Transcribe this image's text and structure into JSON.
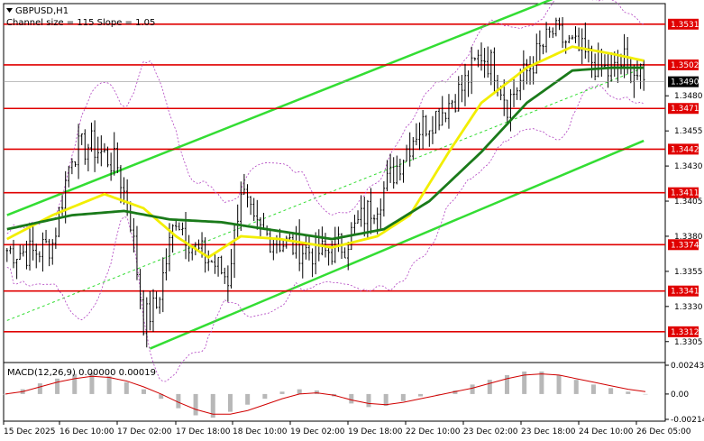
{
  "header": {
    "symbol": "GBPUSD,H1",
    "channel_info": "Channel size = 115 Slope = 1.05"
  },
  "macd_panel": {
    "label": "MACD(12,26,9) 0.00000 0.00019",
    "ticks": [
      "0.00243",
      "0.00",
      "-0.00214"
    ]
  },
  "colors": {
    "candle": "#000000",
    "sma_green": "#1a7a1a",
    "sma_yellow": "#f2ee00",
    "channel": "#33dd33",
    "level_line": "#e00000",
    "bollinger": "#b040c0",
    "macd_hist": "#b8b8b8",
    "macd_signal": "#d00000",
    "current_price_bg": "#000000"
  },
  "chart_data": {
    "type": "candlestick",
    "title": "GBPUSD,H1",
    "ylim": [
      1.3292,
      1.3545
    ],
    "y_ticks": [
      1.3305,
      1.333,
      1.3355,
      1.338,
      1.3405,
      1.343,
      1.3455,
      1.348
    ],
    "y_tick_labels": [
      "1.3305",
      "1.3330",
      "1.3355",
      "1.3380",
      "1.3405",
      "1.3430",
      "1.3455",
      "1.3480"
    ],
    "x_labels": [
      "15 Dec 2025",
      "16 Dec 10:00",
      "17 Dec 02:00",
      "17 Dec 18:00",
      "18 Dec 10:00",
      "19 Dec 02:00",
      "19 Dec 18:00",
      "22 Dec 10:00",
      "23 Dec 02:00",
      "23 Dec 18:00",
      "24 Dec 10:00",
      "26 Dec 05:00"
    ],
    "levels": [
      {
        "value": 1.3531,
        "label": "1.3531"
      },
      {
        "value": 1.3502,
        "label": "1.3502"
      },
      {
        "value": 1.3471,
        "label": "1.3471"
      },
      {
        "value": 1.3442,
        "label": "1.3442"
      },
      {
        "value": 1.3411,
        "label": "1.3411"
      },
      {
        "value": 1.3374,
        "label": "1.3374"
      },
      {
        "value": 1.3341,
        "label": "1.3341"
      },
      {
        "value": 1.3312,
        "label": "1.3312"
      }
    ],
    "current_price": {
      "value": 1.349,
      "label": "1.3490"
    },
    "close_path": [
      {
        "i": 0,
        "v": 1.337
      },
      {
        "i": 8,
        "v": 1.3368
      },
      {
        "i": 14,
        "v": 1.3375
      },
      {
        "i": 20,
        "v": 1.344
      },
      {
        "i": 26,
        "v": 1.3445
      },
      {
        "i": 34,
        "v": 1.343
      },
      {
        "i": 38,
        "v": 1.3392
      },
      {
        "i": 42,
        "v": 1.332
      },
      {
        "i": 46,
        "v": 1.333
      },
      {
        "i": 52,
        "v": 1.3395
      },
      {
        "i": 58,
        "v": 1.337
      },
      {
        "i": 64,
        "v": 1.336
      },
      {
        "i": 68,
        "v": 1.335
      },
      {
        "i": 72,
        "v": 1.3415
      },
      {
        "i": 76,
        "v": 1.3385
      },
      {
        "i": 84,
        "v": 1.3376
      },
      {
        "i": 92,
        "v": 1.337
      },
      {
        "i": 98,
        "v": 1.3368
      },
      {
        "i": 104,
        "v": 1.3375
      },
      {
        "i": 110,
        "v": 1.3395
      },
      {
        "i": 114,
        "v": 1.3405
      },
      {
        "i": 120,
        "v": 1.343
      },
      {
        "i": 126,
        "v": 1.3455
      },
      {
        "i": 134,
        "v": 1.347
      },
      {
        "i": 140,
        "v": 1.3485
      },
      {
        "i": 146,
        "v": 1.351
      },
      {
        "i": 150,
        "v": 1.35
      },
      {
        "i": 154,
        "v": 1.3475
      },
      {
        "i": 158,
        "v": 1.349
      },
      {
        "i": 164,
        "v": 1.3512
      },
      {
        "i": 168,
        "v": 1.3525
      },
      {
        "i": 174,
        "v": 1.3515
      },
      {
        "i": 180,
        "v": 1.3505
      },
      {
        "i": 186,
        "v": 1.3495
      },
      {
        "i": 190,
        "v": 1.3505
      },
      {
        "i": 194,
        "v": 1.3495
      },
      {
        "i": 196,
        "v": 1.3488
      }
    ],
    "candle_count": 197,
    "sma_slow_path": [
      {
        "i": 0,
        "v": 1.3385
      },
      {
        "i": 20,
        "v": 1.3395
      },
      {
        "i": 36,
        "v": 1.3398
      },
      {
        "i": 50,
        "v": 1.3392
      },
      {
        "i": 66,
        "v": 1.339
      },
      {
        "i": 80,
        "v": 1.3385
      },
      {
        "i": 100,
        "v": 1.3378
      },
      {
        "i": 116,
        "v": 1.3385
      },
      {
        "i": 130,
        "v": 1.3405
      },
      {
        "i": 146,
        "v": 1.344
      },
      {
        "i": 160,
        "v": 1.3475
      },
      {
        "i": 174,
        "v": 1.3498
      },
      {
        "i": 186,
        "v": 1.35
      },
      {
        "i": 196,
        "v": 1.35
      }
    ],
    "sma_fast_path": [
      {
        "i": 0,
        "v": 1.3378
      },
      {
        "i": 14,
        "v": 1.3395
      },
      {
        "i": 30,
        "v": 1.341
      },
      {
        "i": 42,
        "v": 1.34
      },
      {
        "i": 52,
        "v": 1.338
      },
      {
        "i": 62,
        "v": 1.3365
      },
      {
        "i": 72,
        "v": 1.338
      },
      {
        "i": 84,
        "v": 1.3378
      },
      {
        "i": 100,
        "v": 1.3372
      },
      {
        "i": 114,
        "v": 1.338
      },
      {
        "i": 124,
        "v": 1.3395
      },
      {
        "i": 136,
        "v": 1.344
      },
      {
        "i": 146,
        "v": 1.3475
      },
      {
        "i": 160,
        "v": 1.35
      },
      {
        "i": 174,
        "v": 1.3515
      },
      {
        "i": 186,
        "v": 1.351
      },
      {
        "i": 196,
        "v": 1.3505
      }
    ],
    "channel_upper": [
      {
        "i": 0,
        "v": 1.3395
      },
      {
        "i": 180,
        "v": 1.356
      }
    ],
    "channel_lower": [
      {
        "i": 44,
        "v": 1.33
      },
      {
        "i": 196,
        "v": 1.3448
      }
    ],
    "channel_mid": [
      {
        "i": 0,
        "v": 1.332
      },
      {
        "i": 196,
        "v": 1.35
      }
    ],
    "macd_hist": [
      0,
      0.0004,
      0.0009,
      0.0013,
      0.0017,
      0.0018,
      0.0015,
      0.001,
      0.0004,
      -0.0004,
      -0.0012,
      -0.0018,
      -0.002,
      -0.0015,
      -0.0009,
      -0.0004,
      0.0002,
      0.0004,
      0.0003,
      -0.0002,
      -0.0008,
      -0.0011,
      -0.001,
      -0.0006,
      -0.0002,
      0,
      0.0003,
      0.0008,
      0.0012,
      0.0016,
      0.0019,
      0.0019,
      0.0016,
      0.0012,
      0.0008,
      0.0005,
      0.0002,
      0
    ],
    "macd_signal": [
      0,
      0.0002,
      0.0006,
      0.001,
      0.0013,
      0.0015,
      0.0014,
      0.0011,
      0.0006,
      0,
      -0.0007,
      -0.0013,
      -0.0017,
      -0.0017,
      -0.0014,
      -0.0009,
      -0.0004,
      0,
      0.0001,
      -0.0001,
      -0.0005,
      -0.0008,
      -0.0009,
      -0.0007,
      -0.0004,
      -0.0001,
      0.0002,
      0.0005,
      0.0009,
      0.0013,
      0.0016,
      0.0017,
      0.0016,
      0.0013,
      0.001,
      0.0007,
      0.0004,
      0.0002
    ],
    "macd_ylim": [
      -0.00214,
      0.00243
    ]
  }
}
